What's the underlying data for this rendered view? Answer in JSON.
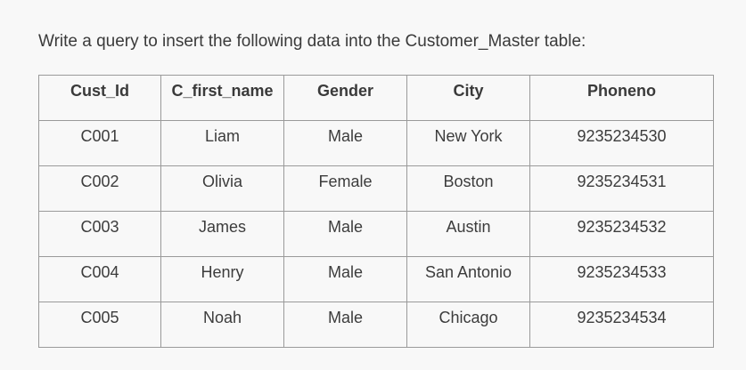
{
  "question": "Write a query to insert the following data into the Customer_Master table:",
  "table": {
    "headers": [
      "Cust_Id",
      "C_first_name",
      "Gender",
      "City",
      "Phoneno"
    ],
    "rows": [
      [
        "C001",
        "Liam",
        "Male",
        "New York",
        "9235234530"
      ],
      [
        "C002",
        "Olivia",
        "Female",
        "Boston",
        "9235234531"
      ],
      [
        "C003",
        "James",
        "Male",
        "Austin",
        "9235234532"
      ],
      [
        "C004",
        "Henry",
        "Male",
        "San Antonio",
        "9235234533"
      ],
      [
        "C005",
        "Noah",
        "Male",
        "Chicago",
        "9235234534"
      ]
    ]
  }
}
